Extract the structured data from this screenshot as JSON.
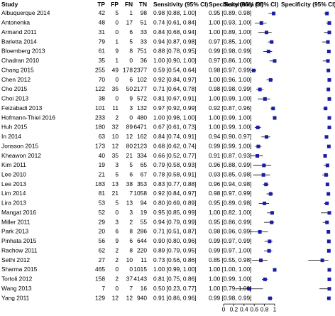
{
  "chart_data": {
    "type": "forest",
    "headers": {
      "study": "Study",
      "tp": "TP",
      "fp": "FP",
      "fn": "FN",
      "tn": "TN",
      "sensitivity": "Sensitivity (95% CI)",
      "specificity": "Specificity (95% CI)"
    },
    "sensitivity_xlim": [
      0,
      1
    ],
    "specificity_xlim": [
      0,
      1
    ],
    "xticks": [
      0,
      0.2,
      0.4,
      0.6,
      0.8,
      1
    ],
    "marker_color": "#1c1ca6",
    "rows": [
      {
        "study": "Albuquerque 2014",
        "tp": 42,
        "fp": 5,
        "fn": 1,
        "tn": 98,
        "sensitivity": 0.98,
        "sensitivity_ci": [
          0.88,
          1.0
        ],
        "sensitivity_label": "0.98 [0.88, 1.00]",
        "specificity": 0.95,
        "specificity_ci": [
          0.89,
          0.98
        ],
        "specificity_label": "0.95 [0.89, 0.98]"
      },
      {
        "study": "Antonenka",
        "tp": 48,
        "fp": 0,
        "fn": 17,
        "tn": 51,
        "sensitivity": 0.74,
        "sensitivity_ci": [
          0.61,
          0.84
        ],
        "sensitivity_label": "0.74 [0.61, 0.84]",
        "specificity": 1.0,
        "specificity_ci": [
          0.93,
          1.0
        ],
        "specificity_label": "1.00 [0.93, 1.00]"
      },
      {
        "study": "Armand 2011",
        "tp": 31,
        "fp": 0,
        "fn": 6,
        "tn": 33,
        "sensitivity": 0.84,
        "sensitivity_ci": [
          0.68,
          0.94
        ],
        "sensitivity_label": "0.84 [0.68, 0.94]",
        "specificity": 1.0,
        "specificity_ci": [
          0.89,
          1.0
        ],
        "specificity_label": "1.00 [0.89, 1.00]"
      },
      {
        "study": "Barletta 2014",
        "tp": 79,
        "fp": 1,
        "fn": 5,
        "tn": 33,
        "sensitivity": 0.94,
        "sensitivity_ci": [
          0.87,
          0.98
        ],
        "sensitivity_label": "0.94 [0.87, 0.98]",
        "specificity": 0.97,
        "specificity_ci": [
          0.85,
          1.0
        ],
        "specificity_label": "0.97 [0.85, 1.00]"
      },
      {
        "study": "Bloemberg 2013",
        "tp": 61,
        "fp": 9,
        "fn": 8,
        "tn": 751,
        "sensitivity": 0.88,
        "sensitivity_ci": [
          0.78,
          0.95
        ],
        "sensitivity_label": "0.88 [0.78, 0.95]",
        "specificity": 0.99,
        "specificity_ci": [
          0.98,
          0.99
        ],
        "specificity_label": "0.99 [0.98, 0.99]"
      },
      {
        "study": "Chadran 2010",
        "tp": 35,
        "fp": 1,
        "fn": 0,
        "tn": 36,
        "sensitivity": 1.0,
        "sensitivity_ci": [
          0.9,
          1.0
        ],
        "sensitivity_label": "1.00 [0.90, 1.00]",
        "specificity": 0.97,
        "specificity_ci": [
          0.86,
          1.0
        ],
        "specificity_label": "0.97 [0.86, 1.00]"
      },
      {
        "study": "Chang 2015",
        "tp": 255,
        "fp": 49,
        "fn": 178,
        "tn": 2377,
        "sensitivity": 0.59,
        "sensitivity_ci": [
          0.54,
          0.64
        ],
        "sensitivity_label": "0.59 [0.54, 0.64]",
        "specificity": 0.98,
        "specificity_ci": [
          0.97,
          0.99
        ],
        "specificity_label": "0.98 [0.97, 0.99]"
      },
      {
        "study": "Chen 2012",
        "tp": 70,
        "fp": 0,
        "fn": 6,
        "tn": 102,
        "sensitivity": 0.92,
        "sensitivity_ci": [
          0.84,
          0.97
        ],
        "sensitivity_label": "0.92 [0.84, 0.97]",
        "specificity": 1.0,
        "specificity_ci": [
          0.96,
          1.0
        ],
        "specificity_label": "1.00 [0.96, 1.00]"
      },
      {
        "study": "Cho 2015",
        "tp": 122,
        "fp": 35,
        "fn": 50,
        "tn": 2177,
        "sensitivity": 0.71,
        "sensitivity_ci": [
          0.64,
          0.78
        ],
        "sensitivity_label": "0.71 [0.64, 0.78]",
        "specificity": 0.98,
        "specificity_ci": [
          0.98,
          0.99
        ],
        "specificity_label": "0.98 [0.98, 0.99]"
      },
      {
        "study": "Choi 2013",
        "tp": 38,
        "fp": 0,
        "fn": 9,
        "tn": 572,
        "sensitivity": 0.81,
        "sensitivity_ci": [
          0.67,
          0.91
        ],
        "sensitivity_label": "0.81 [0.67, 0.91]",
        "specificity": 1.0,
        "specificity_ci": [
          0.99,
          1.0
        ],
        "specificity_label": "1.00 [0.99, 1.00]"
      },
      {
        "study": "Feizabadi 2013",
        "tp": 101,
        "fp": 11,
        "fn": 3,
        "tn": 132,
        "sensitivity": 0.97,
        "sensitivity_ci": [
          0.92,
          0.99
        ],
        "sensitivity_label": "0.97 [0.92, 0.99]",
        "specificity": 0.92,
        "specificity_ci": [
          0.87,
          0.96
        ],
        "specificity_label": "0.92 [0.87, 0.96]"
      },
      {
        "study": "Hofmann-Thiel 2016",
        "tp": 233,
        "fp": 2,
        "fn": 0,
        "tn": 480,
        "sensitivity": 1.0,
        "sensitivity_ci": [
          0.98,
          1.0
        ],
        "sensitivity_label": "1.00 [0.98, 1.00]",
        "specificity": 1.0,
        "specificity_ci": [
          0.99,
          1.0
        ],
        "specificity_label": "1.00 [0.99, 1.00]"
      },
      {
        "study": "Huh 2015",
        "tp": 180,
        "fp": 32,
        "fn": 89,
        "tn": 6471,
        "sensitivity": 0.67,
        "sensitivity_ci": [
          0.61,
          0.73
        ],
        "sensitivity_label": "0.67 [0.61, 0.73]",
        "specificity": 1.0,
        "specificity_ci": [
          0.99,
          1.0
        ],
        "specificity_label": "1.00 [0.99, 1.00]"
      },
      {
        "study": "In 2014",
        "tp": 63,
        "fp": 10,
        "fn": 12,
        "tn": 162,
        "sensitivity": 0.84,
        "sensitivity_ci": [
          0.74,
          0.91
        ],
        "sensitivity_label": "0.84 [0.74, 0.91]",
        "specificity": 0.94,
        "specificity_ci": [
          0.9,
          0.97
        ],
        "specificity_label": "0.94 [0.90, 0.97]"
      },
      {
        "study": "Jonsson 2015",
        "tp": 173,
        "fp": 12,
        "fn": 80,
        "tn": 2123,
        "sensitivity": 0.68,
        "sensitivity_ci": [
          0.62,
          0.74
        ],
        "sensitivity_label": "0.68 [0.62, 0.74]",
        "specificity": 0.99,
        "specificity_ci": [
          0.99,
          1.0
        ],
        "specificity_label": "0.99 [0.99, 1.00]"
      },
      {
        "study": "Kheawon 2012",
        "tp": 40,
        "fp": 35,
        "fn": 21,
        "tn": 334,
        "sensitivity": 0.66,
        "sensitivity_ci": [
          0.52,
          0.77
        ],
        "sensitivity_label": "0.66 [0.52, 0.77]",
        "specificity": 0.91,
        "specificity_ci": [
          0.87,
          0.93
        ],
        "specificity_label": "0.91 [0.87, 0.93]"
      },
      {
        "study": "Kim 2011",
        "tp": 19,
        "fp": 3,
        "fn": 5,
        "tn": 65,
        "sensitivity": 0.79,
        "sensitivity_ci": [
          0.58,
          0.93
        ],
        "sensitivity_label": "0.79 [0.58, 0.93]",
        "specificity": 0.96,
        "specificity_ci": [
          0.88,
          0.99
        ],
        "specificity_label": "0.96 [0.88, 0.99]"
      },
      {
        "study": "Lee 2010",
        "tp": 21,
        "fp": 5,
        "fn": 6,
        "tn": 67,
        "sensitivity": 0.78,
        "sensitivity_ci": [
          0.58,
          0.91
        ],
        "sensitivity_label": "0.78 [0.58, 0.91]",
        "specificity": 0.93,
        "specificity_ci": [
          0.85,
          0.98
        ],
        "specificity_label": "0.93 [0.85, 0.98]"
      },
      {
        "study": "Lee 2013",
        "tp": 183,
        "fp": 13,
        "fn": 38,
        "tn": 353,
        "sensitivity": 0.83,
        "sensitivity_ci": [
          0.77,
          0.88
        ],
        "sensitivity_label": "0.83 [0.77, 0.88]",
        "specificity": 0.96,
        "specificity_ci": [
          0.94,
          0.98
        ],
        "specificity_label": "0.96 [0.94, 0.98]"
      },
      {
        "study": "Lim 2014",
        "tp": 81,
        "fp": 21,
        "fn": 7,
        "tn": 1058,
        "sensitivity": 0.92,
        "sensitivity_ci": [
          0.84,
          0.97
        ],
        "sensitivity_label": "0.92 [0.84, 0.97]",
        "specificity": 0.98,
        "specificity_ci": [
          0.97,
          0.99
        ],
        "specificity_label": "0.98 [0.97, 0.99]"
      },
      {
        "study": "Lira 2013",
        "tp": 53,
        "fp": 5,
        "fn": 13,
        "tn": 94,
        "sensitivity": 0.8,
        "sensitivity_ci": [
          0.69,
          0.89
        ],
        "sensitivity_label": "0.80 [0.69, 0.89]",
        "specificity": 0.95,
        "specificity_ci": [
          0.89,
          0.98
        ],
        "specificity_label": "0.95 [0.89, 0.98]"
      },
      {
        "study": "Mangat 2016",
        "tp": 52,
        "fp": 0,
        "fn": 3,
        "tn": 19,
        "sensitivity": 0.95,
        "sensitivity_ci": [
          0.85,
          0.99
        ],
        "sensitivity_label": "0.95 [0.85, 0.99]",
        "specificity": 1.0,
        "specificity_ci": [
          0.82,
          1.0
        ],
        "specificity_label": "1.00 [0.82, 1.00]"
      },
      {
        "study": "Miller 2011",
        "tp": 29,
        "fp": 3,
        "fn": 2,
        "tn": 55,
        "sensitivity": 0.94,
        "sensitivity_ci": [
          0.79,
          0.99
        ],
        "sensitivity_label": "0.94 [0.79, 0.99]",
        "specificity": 0.95,
        "specificity_ci": [
          0.86,
          0.99
        ],
        "specificity_label": "0.95 [0.86, 0.99]"
      },
      {
        "study": "Park 2013",
        "tp": 20,
        "fp": 6,
        "fn": 8,
        "tn": 286,
        "sensitivity": 0.71,
        "sensitivity_ci": [
          0.51,
          0.87
        ],
        "sensitivity_label": "0.71 [0.51, 0.87]",
        "specificity": 0.98,
        "specificity_ci": [
          0.96,
          0.99
        ],
        "specificity_label": "0.98 [0.96, 0.99]"
      },
      {
        "study": "Pinhata 2015",
        "tp": 56,
        "fp": 9,
        "fn": 6,
        "tn": 644,
        "sensitivity": 0.9,
        "sensitivity_ci": [
          0.8,
          0.96
        ],
        "sensitivity_label": "0.90 [0.80, 0.96]",
        "specificity": 0.99,
        "specificity_ci": [
          0.97,
          0.99
        ],
        "specificity_label": "0.99 [0.97, 0.99]"
      },
      {
        "study": "Rachow 2011",
        "tp": 62,
        "fp": 2,
        "fn": 8,
        "tn": 220,
        "sensitivity": 0.89,
        "sensitivity_ci": [
          0.79,
          0.95
        ],
        "sensitivity_label": "0.89 [0.79, 0.95]",
        "specificity": 0.99,
        "specificity_ci": [
          0.97,
          1.0
        ],
        "specificity_label": "0.99 [0.97, 1.00]"
      },
      {
        "study": "Sethi 2012",
        "tp": 27,
        "fp": 2,
        "fn": 10,
        "tn": 11,
        "sensitivity": 0.73,
        "sensitivity_ci": [
          0.56,
          0.86
        ],
        "sensitivity_label": "0.73 [0.56, 0.86]",
        "specificity": 0.85,
        "specificity_ci": [
          0.55,
          0.98
        ],
        "specificity_label": "0.85 [0.55, 0.98]"
      },
      {
        "study": "Sharma 2015",
        "tp": 465,
        "fp": 0,
        "fn": 0,
        "tn": 1015,
        "sensitivity": 1.0,
        "sensitivity_ci": [
          0.99,
          1.0
        ],
        "sensitivity_label": "1.00 [0.99, 1.00]",
        "specificity": 1.0,
        "specificity_ci": [
          1.0,
          1.0
        ],
        "specificity_label": "1.00 [1.00, 1.00]"
      },
      {
        "study": "Tortoli 2012",
        "tp": 158,
        "fp": 2,
        "fn": 37,
        "tn": 4143,
        "sensitivity": 0.81,
        "sensitivity_ci": [
          0.75,
          0.86
        ],
        "sensitivity_label": "0.81 [0.75, 0.86]",
        "specificity": 1.0,
        "specificity_ci": [
          0.99,
          1.0
        ],
        "specificity_label": "1.00 [0.99, 1.00]"
      },
      {
        "study": "Wang 2013",
        "tp": 7,
        "fp": 0,
        "fn": 7,
        "tn": 16,
        "sensitivity": 0.5,
        "sensitivity_ci": [
          0.23,
          0.77
        ],
        "sensitivity_label": "0.50 [0.23, 0.77]",
        "specificity": 1.0,
        "specificity_ci": [
          0.79,
          1.0
        ],
        "specificity_label": "1.00 [0.79, 1.00]"
      },
      {
        "study": "Yang 2011",
        "tp": 129,
        "fp": 12,
        "fn": 12,
        "tn": 940,
        "sensitivity": 0.91,
        "sensitivity_ci": [
          0.86,
          0.96
        ],
        "sensitivity_label": "0.91 [0.86, 0.96]",
        "specificity": 0.99,
        "specificity_ci": [
          0.98,
          0.99
        ],
        "specificity_label": "0.99 [0.98, 0.99]"
      }
    ]
  }
}
